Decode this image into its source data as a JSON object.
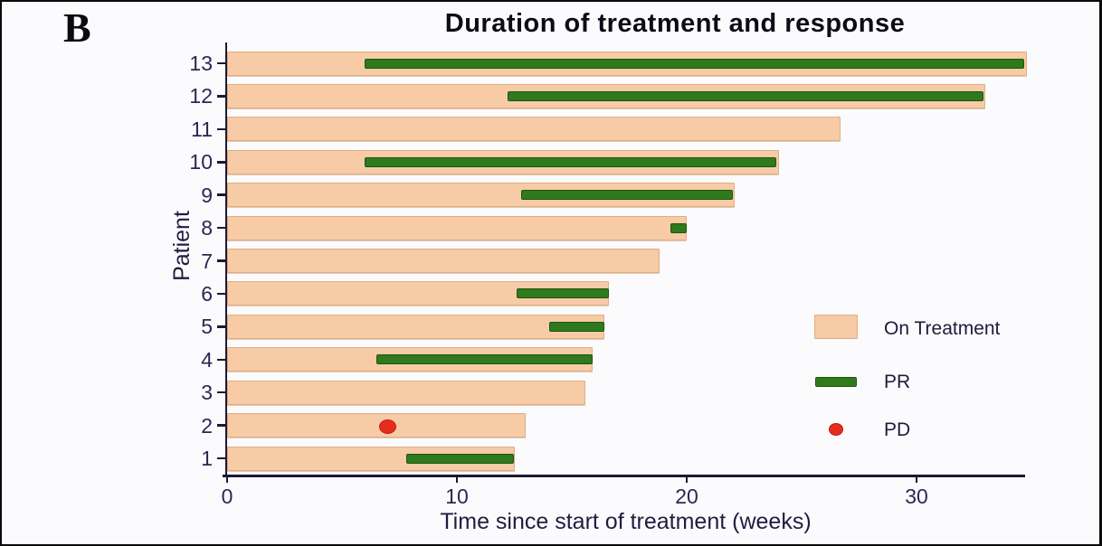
{
  "panel_label": "B",
  "chart_data": {
    "type": "bar",
    "subtype": "swimmer-plot",
    "title": "Duration of treatment and response",
    "xlabel": "Time since start of treatment (weeks)",
    "ylabel": "Patient",
    "xlim": [
      0,
      34.7
    ],
    "xticks": [
      0,
      10,
      20,
      30
    ],
    "grid": false,
    "legend_position": "right-middle",
    "patients": [
      {
        "id": 13,
        "on_treatment_weeks": 34.8,
        "pr_start": 6.0,
        "pr_end": 34.7,
        "pd_week": null
      },
      {
        "id": 12,
        "on_treatment_weeks": 33.0,
        "pr_start": 12.2,
        "pr_end": 32.9,
        "pd_week": null
      },
      {
        "id": 11,
        "on_treatment_weeks": 26.7,
        "pr_start": null,
        "pr_end": null,
        "pd_week": null
      },
      {
        "id": 10,
        "on_treatment_weeks": 24.0,
        "pr_start": 6.0,
        "pr_end": 23.9,
        "pd_week": null
      },
      {
        "id": 9,
        "on_treatment_weeks": 22.1,
        "pr_start": 12.8,
        "pr_end": 22.0,
        "pd_week": null
      },
      {
        "id": 8,
        "on_treatment_weeks": 20.0,
        "pr_start": 19.3,
        "pr_end": 20.0,
        "pd_week": null
      },
      {
        "id": 7,
        "on_treatment_weeks": 18.8,
        "pr_start": null,
        "pr_end": null,
        "pd_week": null
      },
      {
        "id": 6,
        "on_treatment_weeks": 16.6,
        "pr_start": 12.6,
        "pr_end": 16.6,
        "pd_week": null
      },
      {
        "id": 5,
        "on_treatment_weeks": 16.4,
        "pr_start": 14.0,
        "pr_end": 16.4,
        "pd_week": null
      },
      {
        "id": 4,
        "on_treatment_weeks": 15.9,
        "pr_start": 6.5,
        "pr_end": 15.9,
        "pd_week": null
      },
      {
        "id": 3,
        "on_treatment_weeks": 15.6,
        "pr_start": null,
        "pr_end": null,
        "pd_week": null
      },
      {
        "id": 2,
        "on_treatment_weeks": 13.0,
        "pr_start": null,
        "pr_end": null,
        "pd_week": 7.0
      },
      {
        "id": 1,
        "on_treatment_weeks": 12.5,
        "pr_start": 7.8,
        "pr_end": 12.5,
        "pd_week": null
      }
    ],
    "legend": [
      {
        "label": "On Treatment",
        "swatch": "bar",
        "color": "#f6cba6"
      },
      {
        "label": "PR",
        "swatch": "bar",
        "color": "#2e7a1c"
      },
      {
        "label": "PD",
        "swatch": "dot",
        "color": "#e52d1f"
      }
    ]
  },
  "colors": {
    "on_treatment": "#f6cba6",
    "pr": "#2e7a1c",
    "pd": "#e52d1f",
    "axis": "#1b1833",
    "tick_text": "#2b2753",
    "title_text": "#0c0c18",
    "background": "#fbfbfe"
  }
}
